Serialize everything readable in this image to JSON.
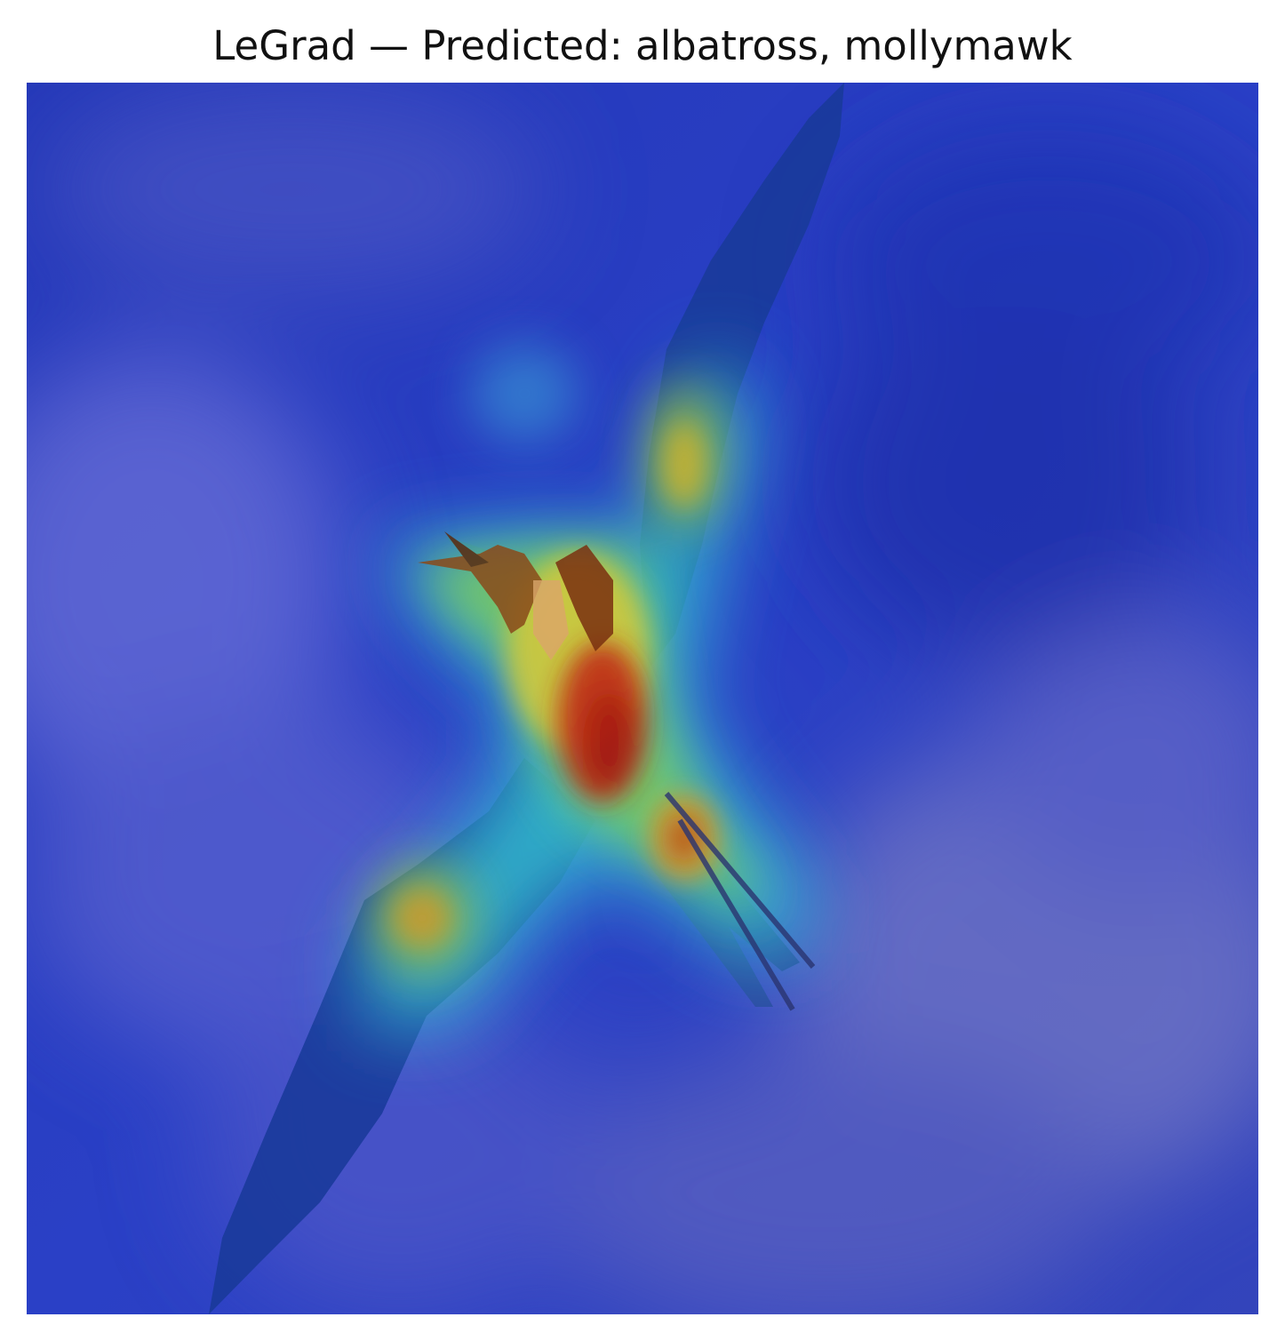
{
  "figure": {
    "title": "LeGrad — Predicted: albatross, mollymawk"
  },
  "colors": {
    "sky_base": "#2a3fc4",
    "cloud_tint": "#7a7fd0",
    "heat_low": "#1e2fb0",
    "heat_mid": "#3fd0c8",
    "heat_high_yellow": "#d8d83a",
    "heat_peak": "#c01818",
    "bird_dark": "#7a3a10"
  },
  "image": {
    "subject": "bird-heatmap-overlay"
  }
}
